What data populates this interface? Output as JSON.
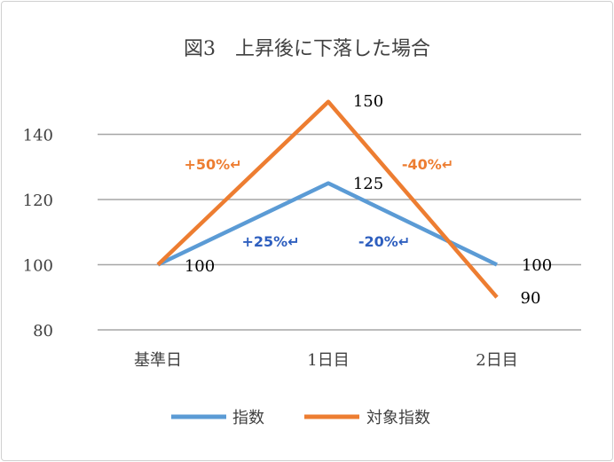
{
  "chart_data": {
    "type": "line",
    "title": "図3　上昇後に下落した場合",
    "categories": [
      "基準日",
      "1日目",
      "2日目"
    ],
    "ylim": [
      80,
      150
    ],
    "yticks": [
      80,
      100,
      120,
      140
    ],
    "grid": true,
    "legend_position": "bottom",
    "series": [
      {
        "name": "指数",
        "values": [
          100,
          125,
          100
        ],
        "color": "#5b9bd5",
        "labels": [
          "100",
          "125",
          "100"
        ]
      },
      {
        "name": "対象指数",
        "values": [
          100,
          150,
          90
        ],
        "color": "#ed7d31",
        "labels": [
          "",
          "150",
          "90"
        ]
      }
    ],
    "annotations": [
      {
        "text": "+50%↵",
        "color": "#ed7d31"
      },
      {
        "text": "-40%↵",
        "color": "#ed7d31"
      },
      {
        "text": "+25%↵",
        "color": "#2e5fbf"
      },
      {
        "text": "-20%↵",
        "color": "#2e5fbf"
      }
    ]
  }
}
